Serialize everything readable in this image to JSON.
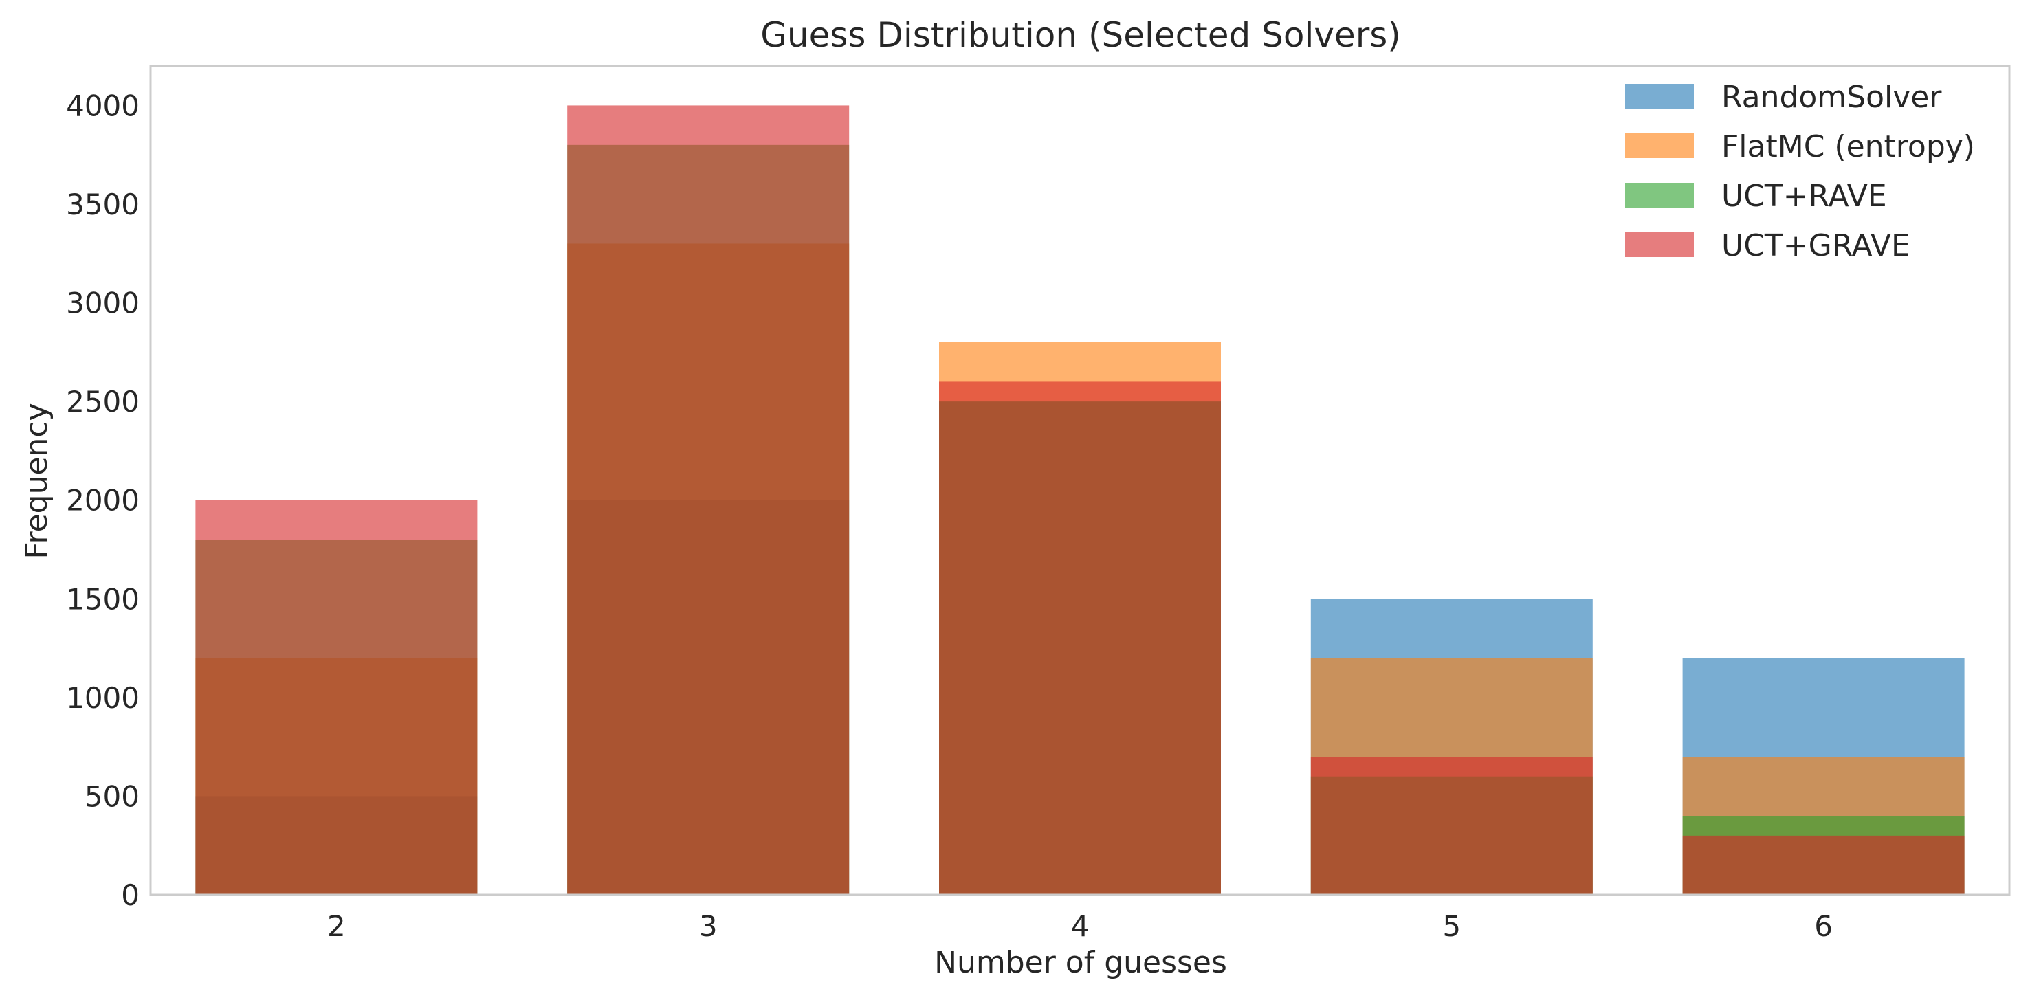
{
  "chart_data": {
    "type": "bar",
    "title": "Guess Distribution (Selected Solvers)",
    "xlabel": "Number of guesses",
    "ylabel": "Frequency",
    "categories": [
      "2",
      "3",
      "4",
      "5",
      "6"
    ],
    "ylim": [
      0,
      4200
    ],
    "yticks": [
      0,
      500,
      1000,
      1500,
      2000,
      2500,
      3000,
      3500,
      4000
    ],
    "grid": false,
    "legend_position": "top-right",
    "bar_opacity": 0.6,
    "overlay": "overlapping semi-transparent bars, drawn in series order",
    "series": [
      {
        "name": "RandomSolver",
        "color": "#1f77b4",
        "values": [
          500,
          2000,
          2500,
          1500,
          1200
        ]
      },
      {
        "name": "FlatMC (entropy)",
        "color": "#ff7f0e",
        "values": [
          1200,
          3300,
          2800,
          1200,
          700
        ]
      },
      {
        "name": "UCT+RAVE",
        "color": "#2ca02c",
        "values": [
          1800,
          3800,
          2500,
          600,
          400
        ]
      },
      {
        "name": "UCT+GRAVE",
        "color": "#d62728",
        "values": [
          2000,
          4000,
          2600,
          700,
          300
        ]
      }
    ]
  }
}
